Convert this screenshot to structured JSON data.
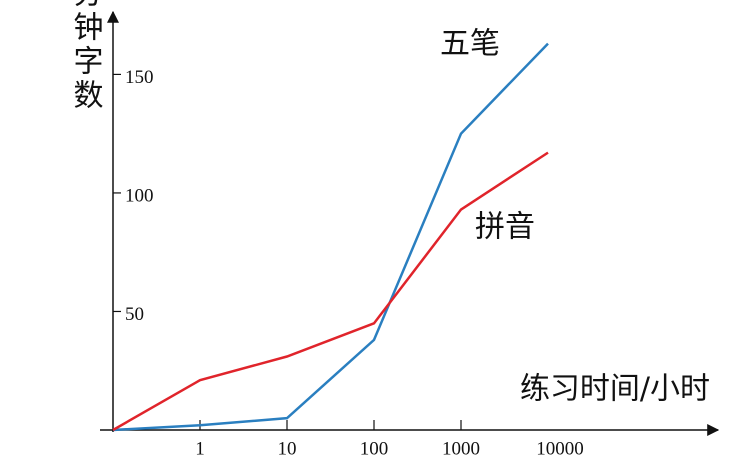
{
  "chart_data": {
    "type": "line",
    "y_label": "每分钟字数",
    "x_label": "练习时间/小时",
    "categories": [
      null,
      "1",
      "10",
      "100",
      "1000",
      "10000"
    ],
    "series": [
      {
        "name": "五笔",
        "color": "#2a7fc0",
        "values": [
          0,
          2,
          5,
          38,
          125,
          163
        ]
      },
      {
        "name": "拼音",
        "color": "#e0242b",
        "values": [
          0,
          21,
          31,
          45,
          93,
          117
        ]
      }
    ],
    "ylim": [
      0,
      170
    ],
    "yticks": [
      50,
      100,
      150
    ]
  }
}
